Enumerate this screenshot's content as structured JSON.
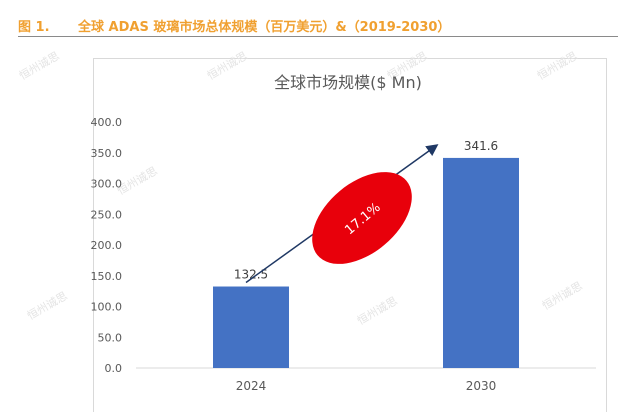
{
  "header": {
    "figure_number": "图 1.",
    "title": "全球 ADAS 玻璃市场总体规模（百万美元）&（2019-2030）"
  },
  "colors": {
    "bar": "#4472c4",
    "ellipse": "#e8000b",
    "arrow": "#1f3864",
    "header_text": "#f0a030"
  },
  "chart_data": {
    "type": "bar",
    "title": "全球市场规模($ Mn)",
    "categories": [
      "2024",
      "2030"
    ],
    "values": [
      132.5,
      341.6
    ],
    "value_labels": [
      "132.5",
      "341.6"
    ],
    "xlabel": "",
    "ylabel": "",
    "ylim": [
      0,
      400
    ],
    "yticks": [
      "0.0",
      "50.0",
      "100.0",
      "150.0",
      "200.0",
      "250.0",
      "300.0",
      "350.0",
      "400.0"
    ],
    "annotation": "17.1%",
    "grid": false
  }
}
